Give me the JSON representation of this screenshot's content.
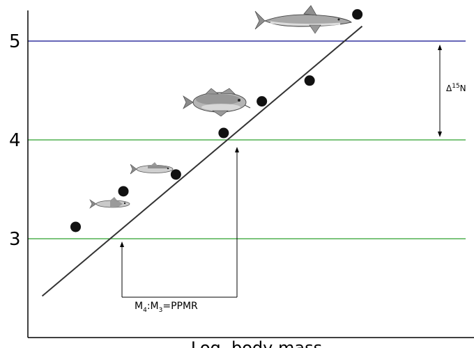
{
  "chart_data": {
    "type": "scatter",
    "title": "",
    "xlabel": "Log. body mass",
    "ylabel": "",
    "ylim": [
      2.2,
      5.35
    ],
    "y_ticks": [
      3,
      4,
      5
    ],
    "y_tick_labels": [
      "3",
      "4",
      "5"
    ],
    "x_ticks_shown": false,
    "grid": false,
    "series": [
      {
        "x": [
          1.0,
          2.0,
          3.1,
          4.1,
          4.9,
          5.9,
          6.9
        ],
        "y": [
          3.12,
          3.48,
          3.65,
          4.07,
          4.39,
          4.6,
          5.27
        ]
      }
    ],
    "fit_line": {
      "x": [
        0.3,
        7.0
      ],
      "y": [
        2.42,
        5.15
      ]
    },
    "reference_lines": [
      {
        "y": 5,
        "color": "#0a0a8c"
      },
      {
        "y": 4,
        "color": "#2ca02c"
      },
      {
        "y": 3,
        "color": "#2ca02c"
      }
    ],
    "annotations": {
      "delta_label": "Δ",
      "delta_sup": "15",
      "delta_suffix": "N",
      "ppmr_m4": "M",
      "ppmr_sub4": "4",
      "ppmr_colon": ":M",
      "ppmr_sub3": "3",
      "ppmr_rest": "=PPMR"
    },
    "organisms": [
      "small-fish",
      "small-fish",
      "cod",
      "shark"
    ]
  },
  "colors": {
    "points": "#111111",
    "fit": "#333333",
    "axis": "#000000"
  }
}
